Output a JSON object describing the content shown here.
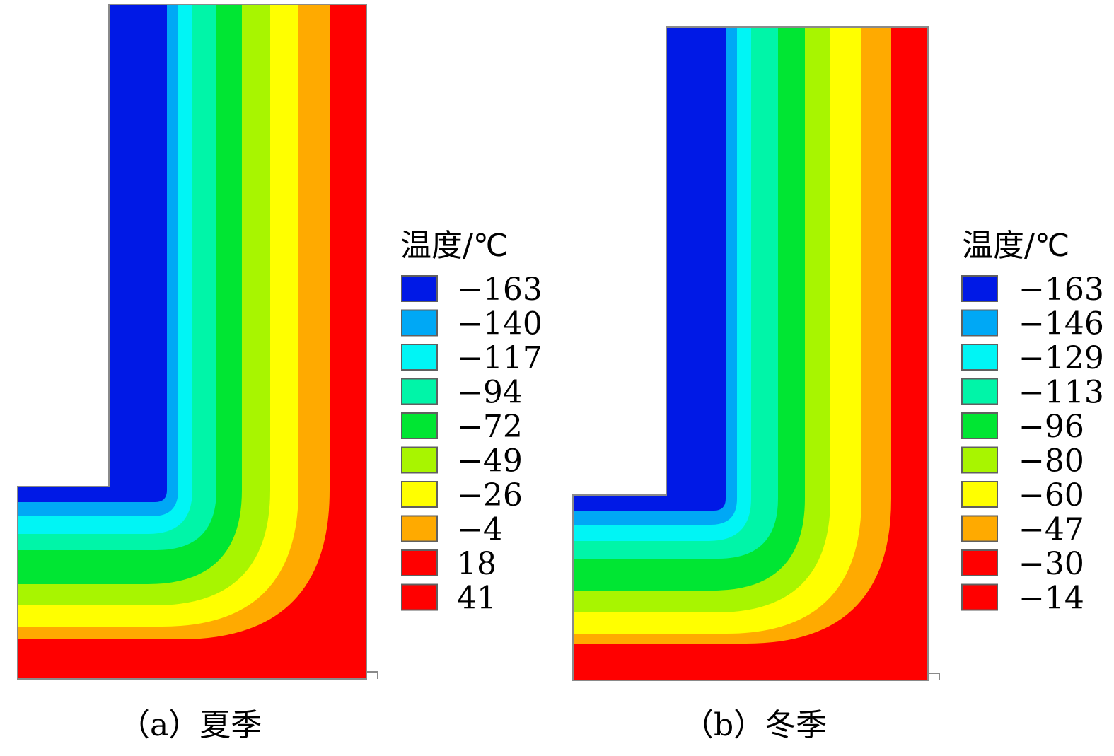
{
  "panels": [
    {
      "id": "a",
      "caption": "（a）夏季",
      "legend_title": "温度/℃",
      "legend": [
        {
          "label": "−163",
          "color": "#0019e6"
        },
        {
          "label": "−140",
          "color": "#00a8f5"
        },
        {
          "label": "−117",
          "color": "#00f5f5"
        },
        {
          "label": "−94",
          "color": "#00f5a8"
        },
        {
          "label": "−72",
          "color": "#00e633"
        },
        {
          "label": "−49",
          "color": "#a8f500"
        },
        {
          "label": "−26",
          "color": "#ffff00"
        },
        {
          "label": "−4",
          "color": "#ffaa00"
        },
        {
          "label": "18",
          "color": "#ff0000"
        },
        {
          "label": "41",
          "color": "#ff0000"
        }
      ]
    },
    {
      "id": "b",
      "caption": "（b）冬季",
      "legend_title": "温度/℃",
      "legend": [
        {
          "label": "−163",
          "color": "#0019e6"
        },
        {
          "label": "−146",
          "color": "#00a8f5"
        },
        {
          "label": "−129",
          "color": "#00f5f5"
        },
        {
          "label": "−113",
          "color": "#00f5a8"
        },
        {
          "label": "−96",
          "color": "#00e633"
        },
        {
          "label": "−80",
          "color": "#a8f500"
        },
        {
          "label": "−60",
          "color": "#ffff00"
        },
        {
          "label": "−47",
          "color": "#ffaa00"
        },
        {
          "label": "−30",
          "color": "#ff0000"
        },
        {
          "label": "−14",
          "color": "#ff0000"
        }
      ]
    }
  ],
  "band_colors": [
    "#0019e6",
    "#00a8f5",
    "#00f5f5",
    "#00f5a8",
    "#00e633",
    "#a8f500",
    "#ffff00",
    "#ffaa00",
    "#ff0000"
  ]
}
